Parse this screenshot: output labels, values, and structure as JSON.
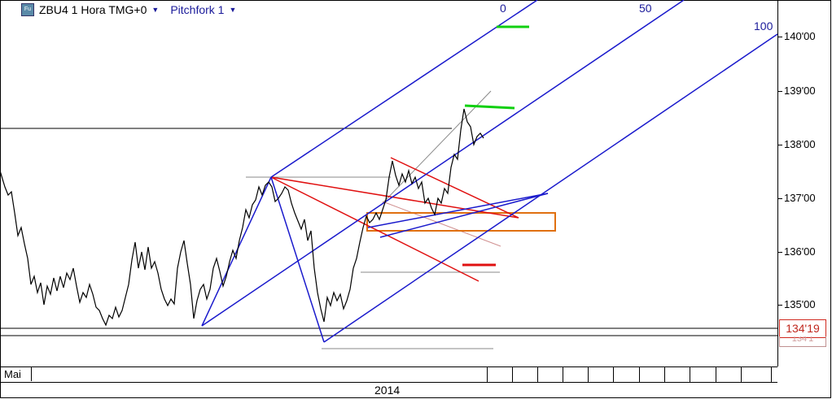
{
  "header": {
    "symbol_label": "ZBU4 1 Hora TMG+0",
    "tool_label": "Pitchfork 1",
    "icon": "fu-icon",
    "symbol_dropdown_icon": "chevron-down-icon",
    "tool_dropdown_icon": "chevron-down-icon"
  },
  "pitchfork_levels": [
    "0",
    "50",
    "100"
  ],
  "y_axis": {
    "ticks": [
      "140'00",
      "139'00",
      "138'00",
      "137'00",
      "136'00",
      "135'00"
    ],
    "last_price": "134'19",
    "last_price_secondary": "134'1"
  },
  "x_axis": {
    "month_label": "Mai",
    "year_label": "2014"
  },
  "colors": {
    "price_line": "#000000",
    "pitchfork": "#1a1acc",
    "channel": "#e01010",
    "zone": "#e07010",
    "marker_green": "#10d010",
    "marker_red": "#e01010",
    "reference_lines": "#888888"
  }
}
